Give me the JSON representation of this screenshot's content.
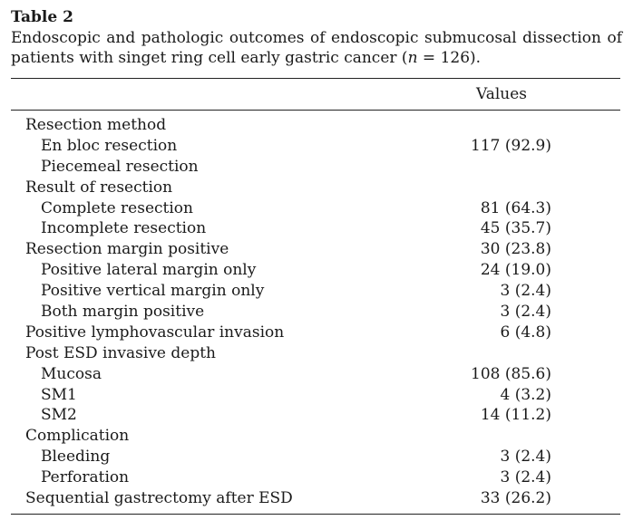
{
  "table": {
    "label": "Table 2",
    "caption_pre": "Endoscopic and pathologic outcomes of endoscopic submucosal dissection of patients with singet ring cell early gastric cancer (",
    "caption_n": "n",
    "caption_post": " = 126).",
    "column_header": "Values",
    "rows": [
      {
        "label": "Resection method",
        "value": "",
        "indent": 0
      },
      {
        "label": "En bloc resection",
        "value": "117 (92.9)",
        "indent": 1
      },
      {
        "label": "Piecemeal resection",
        "value": "",
        "indent": 1
      },
      {
        "label": "Result of resection",
        "value": "",
        "indent": 0
      },
      {
        "label": "Complete resection",
        "value": "81 (64.3)",
        "indent": 1
      },
      {
        "label": "Incomplete resection",
        "value": "45 (35.7)",
        "indent": 1
      },
      {
        "label": "Resection margin positive",
        "value": "30 (23.8)",
        "indent": 0
      },
      {
        "label": "Positive lateral margin only",
        "value": "24 (19.0)",
        "indent": 1
      },
      {
        "label": "Positive vertical margin only",
        "value": "3 (2.4)",
        "indent": 1
      },
      {
        "label": "Both margin positive",
        "value": "3 (2.4)",
        "indent": 1
      },
      {
        "label": "Positive lymphovascular invasion",
        "value": "6 (4.8)",
        "indent": 0
      },
      {
        "label": "Post ESD invasive depth",
        "value": "",
        "indent": 0
      },
      {
        "label": "Mucosa",
        "value": "108 (85.6)",
        "indent": 1
      },
      {
        "label": "SM1",
        "value": "4 (3.2)",
        "indent": 1
      },
      {
        "label": "SM2",
        "value": "14 (11.2)",
        "indent": 1
      },
      {
        "label": "Complication",
        "value": "",
        "indent": 0
      },
      {
        "label": "Bleeding",
        "value": "3 (2.4)",
        "indent": 1
      },
      {
        "label": "Perforation",
        "value": "3 (2.4)",
        "indent": 1
      },
      {
        "label": "Sequential gastrectomy after ESD",
        "value": "33 (26.2)",
        "indent": 0
      }
    ]
  }
}
